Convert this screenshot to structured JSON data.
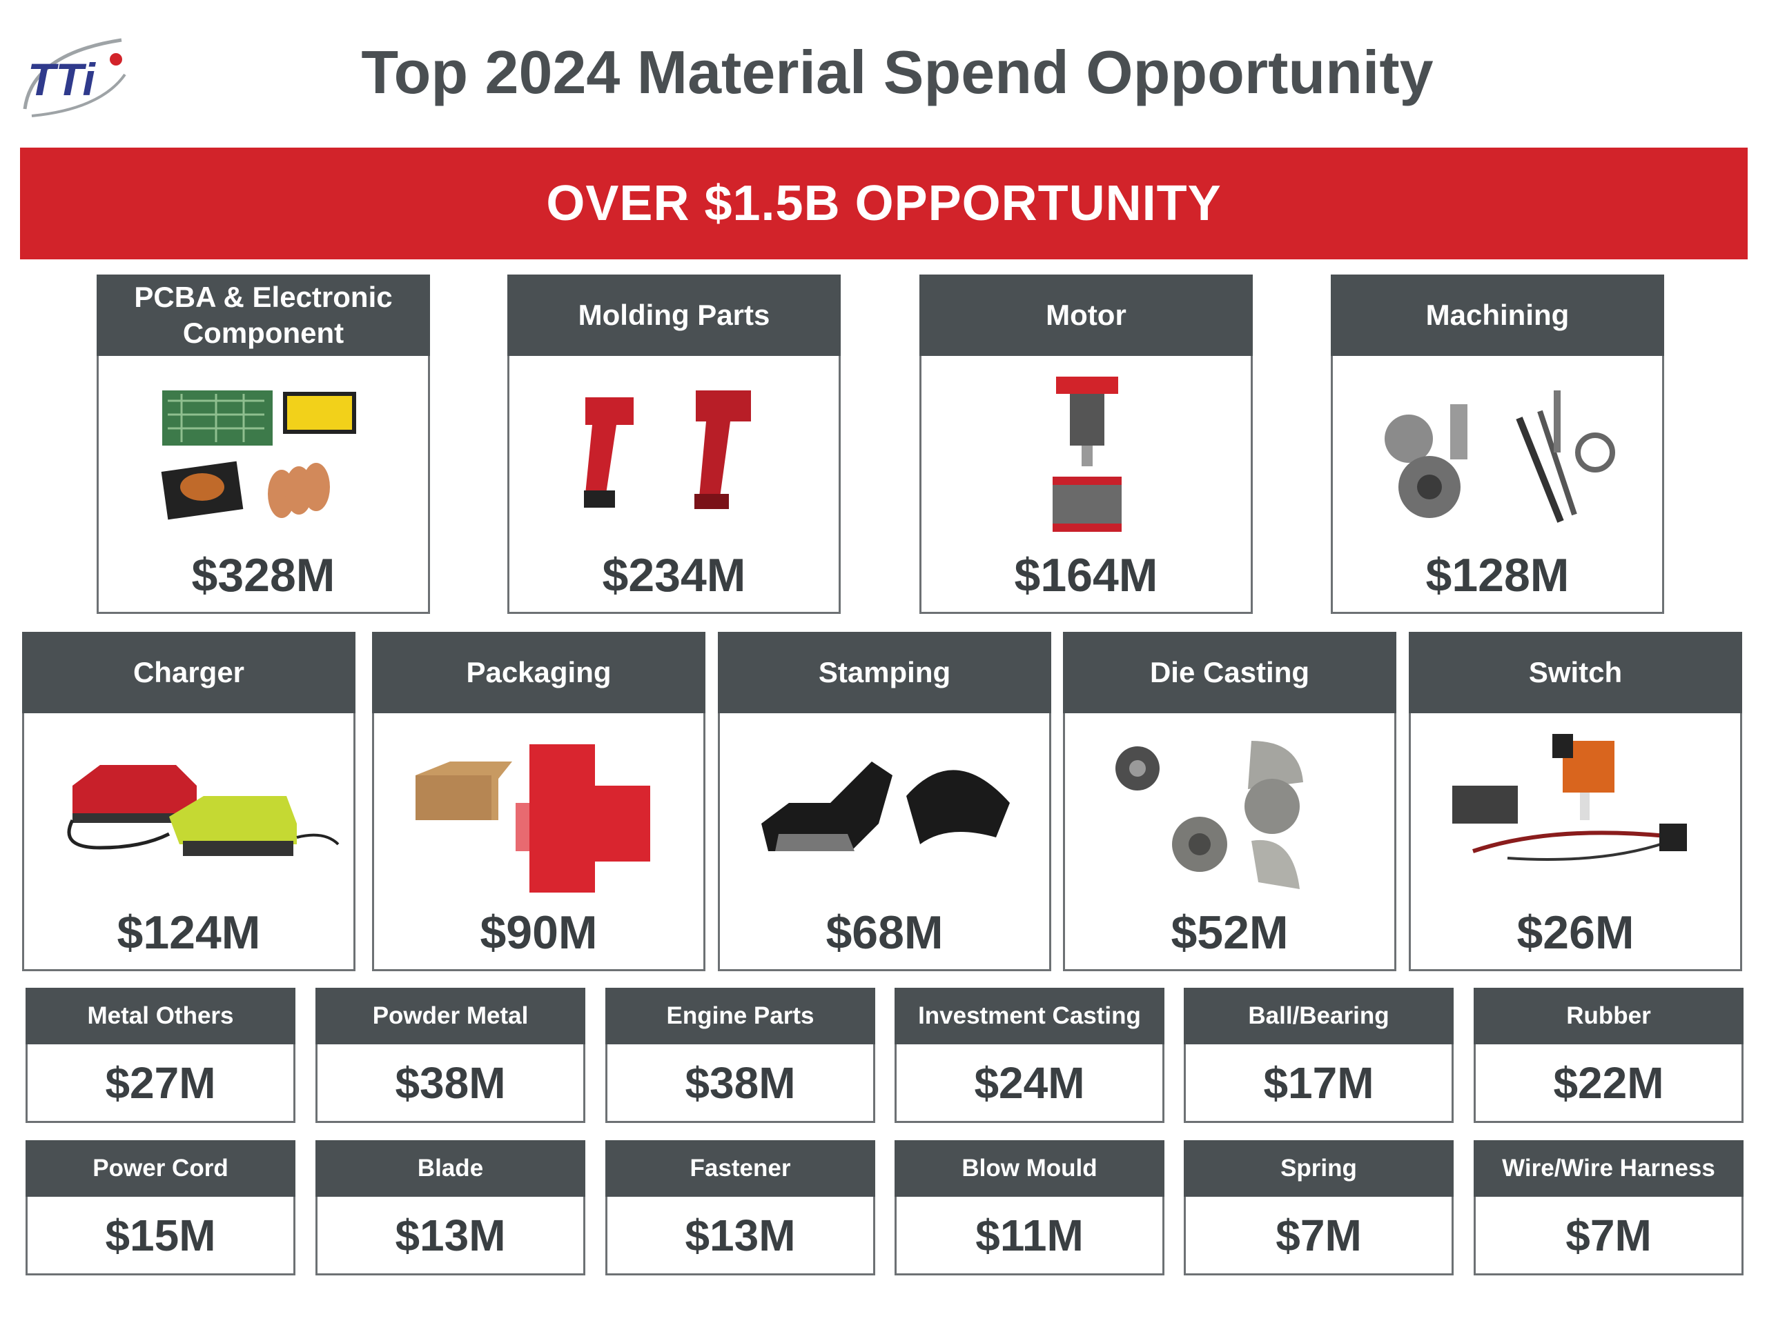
{
  "header": {
    "logo_text": "TTi",
    "title": "Top 2024 Material Spend Opportunity"
  },
  "banner": {
    "text": "OVER $1.5B OPPORTUNITY"
  },
  "row1": [
    {
      "label": "PCBA & Electronic Component",
      "value": "$328M"
    },
    {
      "label": "Molding Parts",
      "value": "$234M"
    },
    {
      "label": "Motor",
      "value": "$164M"
    },
    {
      "label": "Machining",
      "value": "$128M"
    }
  ],
  "row2": [
    {
      "label": "Charger",
      "value": "$124M"
    },
    {
      "label": "Packaging",
      "value": "$90M"
    },
    {
      "label": "Stamping",
      "value": "$68M"
    },
    {
      "label": "Die Casting",
      "value": "$52M"
    },
    {
      "label": "Switch",
      "value": "$26M"
    }
  ],
  "row3": [
    {
      "label": "Metal Others",
      "value": "$27M"
    },
    {
      "label": "Powder Metal",
      "value": "$38M"
    },
    {
      "label": "Engine Parts",
      "value": "$38M"
    },
    {
      "label": "Investment Casting",
      "value": "$24M"
    },
    {
      "label": "Ball/Bearing",
      "value": "$17M"
    },
    {
      "label": "Rubber",
      "value": "$22M"
    }
  ],
  "row4": [
    {
      "label": "Power Cord",
      "value": "$15M"
    },
    {
      "label": "Blade",
      "value": "$13M"
    },
    {
      "label": "Fastener",
      "value": "$13M"
    },
    {
      "label": "Blow Mould",
      "value": "$11M"
    },
    {
      "label": "Spring",
      "value": "$7M"
    },
    {
      "label": "Wire/Wire Harness",
      "value": "$7M"
    }
  ],
  "colors": {
    "banner": "#d2232a",
    "header_bar": "#4a5053",
    "logo_red": "#d2232a",
    "logo_blue": "#2f3a8c"
  }
}
